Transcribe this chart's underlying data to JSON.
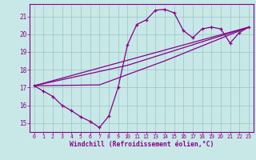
{
  "xlabel": "Windchill (Refroidissement éolien,°C)",
  "bg_color": "#c8e8e8",
  "grid_color": "#a0c8c8",
  "line_color": "#880088",
  "x_ticks": [
    0,
    1,
    2,
    3,
    4,
    5,
    6,
    7,
    8,
    9,
    10,
    11,
    12,
    13,
    14,
    15,
    16,
    17,
    18,
    19,
    20,
    21,
    22,
    23
  ],
  "y_ticks": [
    15,
    16,
    17,
    18,
    19,
    20,
    21
  ],
  "xlim": [
    -0.5,
    23.5
  ],
  "ylim": [
    14.5,
    21.7
  ],
  "line1_x": [
    0,
    1,
    2,
    3,
    4,
    5,
    6,
    7,
    8,
    9,
    10,
    11,
    12,
    13,
    14,
    15,
    16,
    17,
    18,
    19,
    20,
    21,
    22,
    23
  ],
  "line1_y": [
    17.1,
    16.8,
    16.5,
    16.0,
    15.7,
    15.35,
    15.1,
    14.75,
    15.4,
    17.0,
    19.4,
    20.55,
    20.8,
    21.35,
    21.4,
    21.2,
    20.2,
    19.8,
    20.3,
    20.4,
    20.3,
    19.5,
    20.1,
    20.4
  ],
  "line2_x": [
    0,
    23
  ],
  "line2_y": [
    17.1,
    20.4
  ],
  "line3_x": [
    0,
    10,
    23
  ],
  "line3_y": [
    17.1,
    18.25,
    20.4
  ],
  "line4_x": [
    0,
    7,
    14,
    23
  ],
  "line4_y": [
    17.1,
    17.15,
    18.5,
    20.4
  ]
}
